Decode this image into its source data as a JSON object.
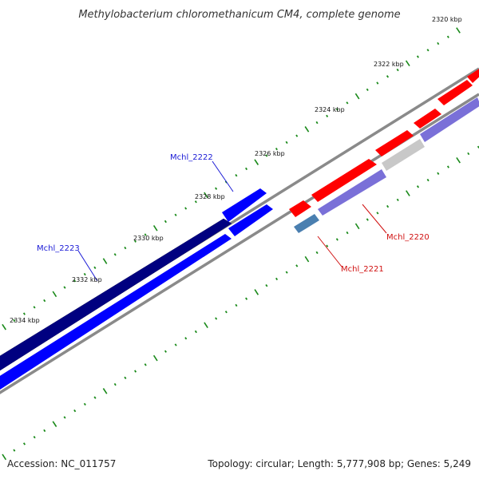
{
  "title": "Methylobacterium chloromethanicum CM4, complete genome",
  "footer": {
    "accession": "Accession: NC_011757",
    "topology": "Topology: circular; Length: 5,777,908 bp; Genes: 5,249"
  },
  "colors": {
    "backbone": "#888888",
    "ticks": "#1a8a1a",
    "forward_gene": "#ff0000",
    "reverse_gene_a": "#0000ff",
    "reverse_gene_b": "#000080",
    "forward_cds": "#7a70d8",
    "reverse_cds": "#4a7fb0",
    "pseudo": "#c8c8c8",
    "label_blue": "#1a1ad6",
    "label_red": "#d01010"
  },
  "ticks": [
    {
      "label": "2320 kbp"
    },
    {
      "label": "2322 kbp"
    },
    {
      "label": "2324 kbp"
    },
    {
      "label": "2326 kbp"
    },
    {
      "label": "2328 kbp"
    },
    {
      "label": "2330 kbp"
    },
    {
      "label": "2332 kbp"
    },
    {
      "label": "2334 kbp"
    }
  ],
  "genes": [
    {
      "name": "Mchl_2222",
      "strand": "reverse"
    },
    {
      "name": "Mchl_2223",
      "strand": "reverse"
    },
    {
      "name": "Mchl_2220",
      "strand": "forward"
    },
    {
      "name": "Mchl_2221",
      "strand": "forward"
    }
  ]
}
